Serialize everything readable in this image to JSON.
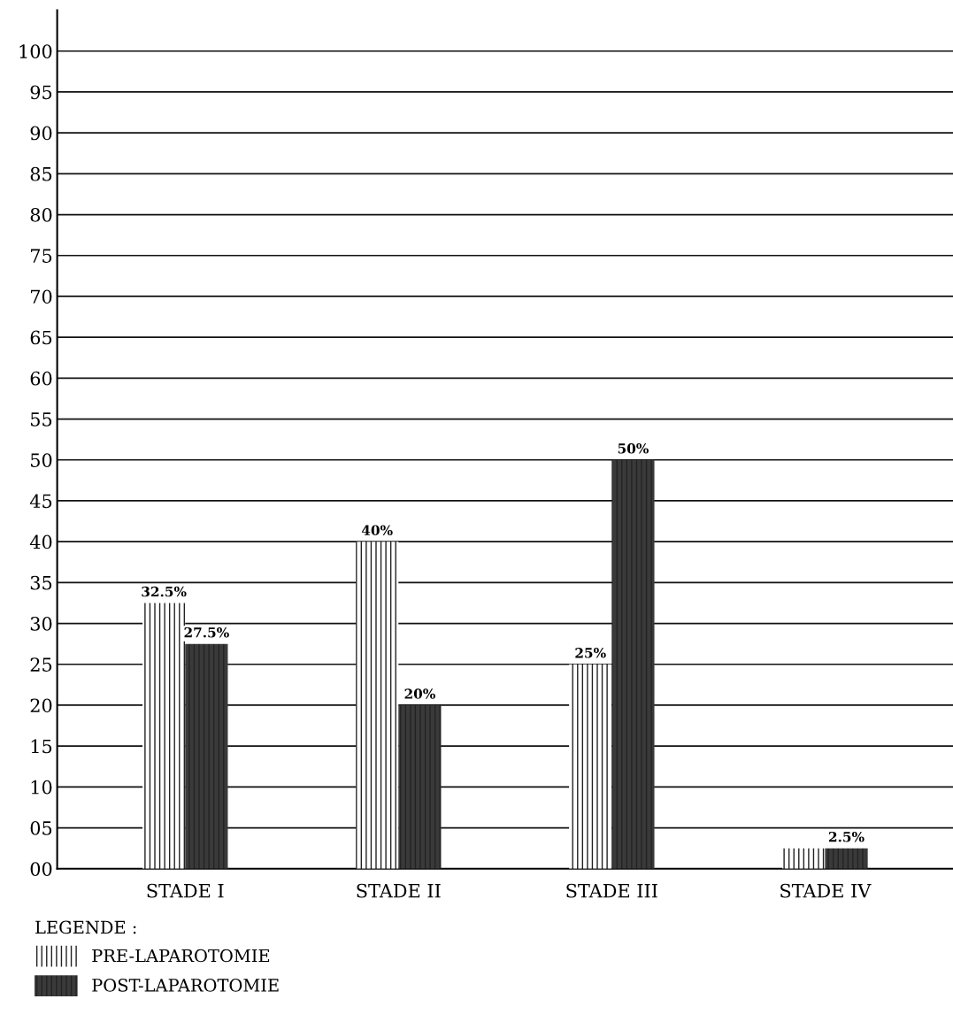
{
  "chart_data": {
    "type": "bar",
    "categories": [
      "STADE I",
      "STADE II",
      "STADE III",
      "STADE IV"
    ],
    "series": [
      {
        "name": "PRE-LAPAROTOMIE",
        "color": "#ffffff",
        "values": [
          32.5,
          40,
          25,
          2.5
        ],
        "value_labels": [
          "32.5%",
          "40%",
          "25%",
          null
        ]
      },
      {
        "name": "POST-LAPAROTOMIE",
        "color": "#3a3a3a",
        "values": [
          27.5,
          20,
          50,
          2.5
        ],
        "value_labels": [
          "27.5%",
          "20%",
          "50%",
          "2.5%"
        ]
      }
    ],
    "ylim": [
      0,
      105
    ],
    "yticks": [
      {
        "value": 0,
        "label": "00"
      },
      {
        "value": 5,
        "label": "05"
      },
      10,
      15,
      20,
      25,
      30,
      35,
      40,
      45,
      50,
      55,
      60,
      65,
      70,
      75,
      80,
      85,
      90,
      95,
      100
    ],
    "grid": "y",
    "legend": "bottom left",
    "legend_title": "LEGENDE :"
  }
}
